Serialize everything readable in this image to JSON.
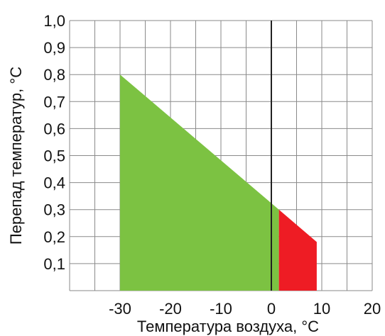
{
  "chart_data": {
    "type": "area",
    "title": "",
    "xlabel": "Температура воздуха,",
    "xlabel_unit": "°С",
    "ylabel": "Перепад температур,",
    "ylabel_unit": "°С",
    "xlim": [
      -40,
      20
    ],
    "ylim": [
      0,
      1.0
    ],
    "x_ticks": [
      -30,
      -20,
      -10,
      0,
      10,
      20
    ],
    "x_tick_labels": [
      "-30",
      "-20",
      "-10",
      "0",
      "10",
      "20"
    ],
    "y_ticks": [
      0.1,
      0.2,
      0.3,
      0.4,
      0.5,
      0.6,
      0.7,
      0.8,
      0.9,
      1.0
    ],
    "y_tick_labels": [
      "0,1",
      "0,2",
      "0,3",
      "0,4",
      "0,5",
      "0,6",
      "0,7",
      "0,8",
      "0,9",
      "1,0"
    ],
    "x_minor_step": 5,
    "y_minor_step": 0.1,
    "grid": true,
    "vertical_reference_x": 0,
    "series": [
      {
        "color": "#7cc242",
        "x": [
          -30,
          1.5
        ],
        "y": [
          0.8,
          0.3
        ]
      },
      {
        "color": "#ee1c24",
        "x": [
          1.5,
          9
        ],
        "y": [
          0.3,
          0.18
        ]
      }
    ]
  }
}
